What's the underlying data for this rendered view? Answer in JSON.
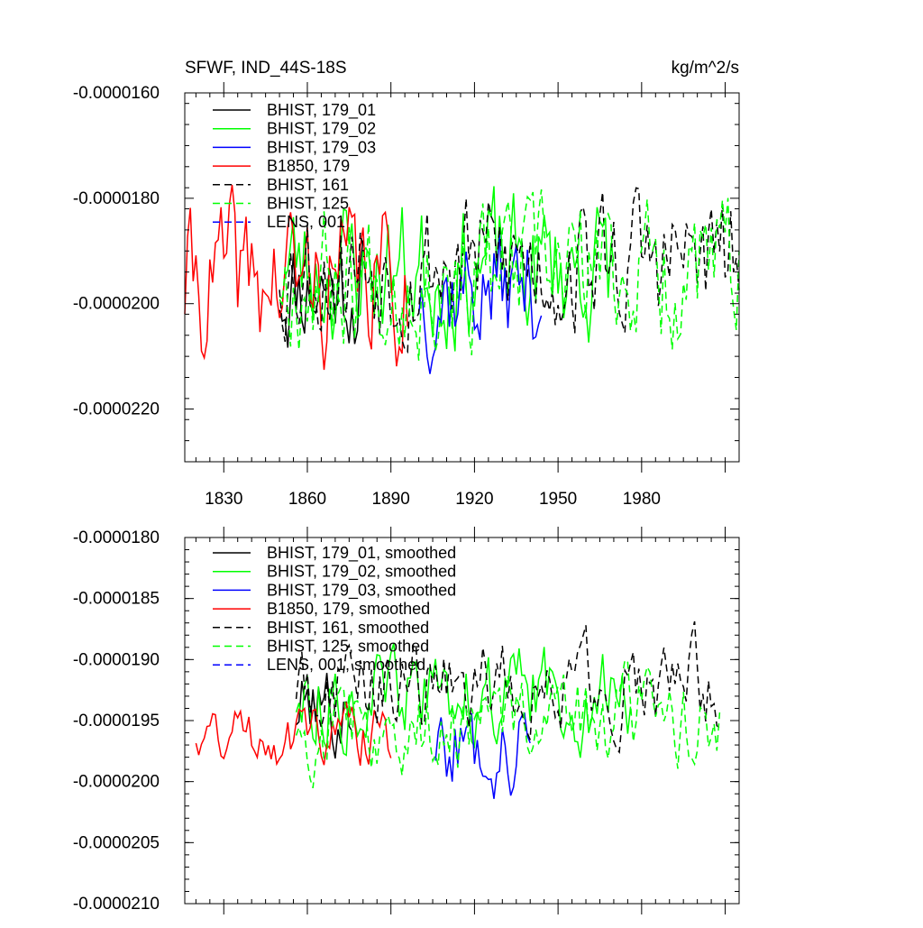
{
  "chart_data": [
    {
      "type": "line",
      "title": "SFWF, IND_44S-18S",
      "units": "kg/m^2/s",
      "xlabel": "",
      "ylabel": "",
      "xlim": [
        1816,
        2015
      ],
      "ylim": [
        -2.3e-05,
        -1.6e-05
      ],
      "x_ticks": [
        1830,
        1860,
        1890,
        1920,
        1950,
        1980
      ],
      "x_tick_labels": [
        "1830",
        "1860",
        "1890",
        "1920",
        "1950",
        "1980"
      ],
      "y_ticks": [
        -2.2e-05,
        -2e-05,
        -1.8e-05,
        -1.6e-05
      ],
      "y_tick_labels": [
        "-0.0000220",
        "-0.0000200",
        "-0.0000180",
        "-0.0000160"
      ],
      "legend_position": "top-left",
      "grid": false,
      "series": [
        {
          "name": "BHIST, 179_01",
          "color": "#000000",
          "dash": "solid",
          "start": 1850,
          "end": 1880,
          "step": 1,
          "mean": -1.96e-05,
          "amp": 1e-06,
          "seed": 11
        },
        {
          "name": "BHIST, 179_02",
          "color": "#00ff00",
          "dash": "solid",
          "start": 1850,
          "end": 1970,
          "step": 1,
          "mean": -1.93e-05,
          "amp": 1.1e-06,
          "seed": 23
        },
        {
          "name": "BHIST, 179_03",
          "color": "#0000ff",
          "dash": "solid",
          "start": 1900,
          "end": 1944,
          "step": 1,
          "mean": -1.97e-05,
          "amp": 1e-06,
          "seed": 37
        },
        {
          "name": "B1850, 179",
          "color": "#ff0000",
          "dash": "solid",
          "start": 1816,
          "end": 1896,
          "step": 1,
          "mean": -1.96e-05,
          "amp": 1.2e-06,
          "seed": 41
        },
        {
          "name": "BHIST, 161",
          "color": "#000000",
          "dash": "dashed",
          "start": 1850,
          "end": 2015,
          "step": 1,
          "mean": -1.92e-05,
          "amp": 1.1e-06,
          "seed": 53
        },
        {
          "name": "BHIST, 125",
          "color": "#00ff00",
          "dash": "dashed",
          "start": 1850,
          "end": 2015,
          "step": 1,
          "mean": -1.94e-05,
          "amp": 1.1e-06,
          "seed": 67
        },
        {
          "name": "LENS, 001",
          "color": "#0000ff",
          "dash": "dashed",
          "start": null,
          "end": null,
          "step": 1,
          "mean": -1.93e-05,
          "amp": 8e-07,
          "seed": 79
        }
      ]
    },
    {
      "type": "line",
      "title": "",
      "units": "",
      "xlabel": "",
      "ylabel": "",
      "xlim": [
        1816,
        2015
      ],
      "ylim": [
        -2.1e-05,
        -1.8e-05
      ],
      "x_ticks": [],
      "x_tick_labels": [],
      "y_ticks": [
        -2.1e-05,
        -2.05e-05,
        -2e-05,
        -1.95e-05,
        -1.9e-05,
        -1.85e-05,
        -1.8e-05
      ],
      "y_tick_labels": [
        "-0.0000210",
        "-0.0000205",
        "-0.0000200",
        "-0.0000195",
        "-0.0000190",
        "-0.0000185",
        "-0.0000180"
      ],
      "legend_position": "top-left",
      "grid": false,
      "series": [
        {
          "name": "BHIST, 179_01, smoothed",
          "color": "#000000",
          "dash": "solid",
          "start": 1856,
          "end": 1876,
          "step": 1,
          "mean": -1.94e-05,
          "amp": 3e-07,
          "seed": 101
        },
        {
          "name": "BHIST, 179_02, smoothed",
          "color": "#00ff00",
          "dash": "solid",
          "start": 1856,
          "end": 1976,
          "step": 1,
          "mean": -1.93e-05,
          "amp": 3e-07,
          "seed": 113
        },
        {
          "name": "BHIST, 179_03, smoothed",
          "color": "#0000ff",
          "dash": "solid",
          "start": 1906,
          "end": 1940,
          "step": 1,
          "mean": -1.97e-05,
          "amp": 3e-07,
          "seed": 127
        },
        {
          "name": "B1850, 179, smoothed",
          "color": "#ff0000",
          "dash": "solid",
          "start": 1820,
          "end": 1890,
          "step": 1,
          "mean": -1.96e-05,
          "amp": 2e-07,
          "seed": 131
        },
        {
          "name": "BHIST, 161, smoothed",
          "color": "#000000",
          "dash": "dashed",
          "start": 1856,
          "end": 2008,
          "step": 1,
          "mean": -1.92e-05,
          "amp": 3e-07,
          "seed": 149
        },
        {
          "name": "BHIST, 125, smoothed",
          "color": "#00ff00",
          "dash": "dashed",
          "start": 1856,
          "end": 2008,
          "step": 1,
          "mean": -1.95e-05,
          "amp": 3e-07,
          "seed": 157
        },
        {
          "name": "LENS, 001, smoothed",
          "color": "#0000ff",
          "dash": "dashed",
          "start": null,
          "end": null,
          "step": 1,
          "mean": -1.93e-05,
          "amp": 2e-07,
          "seed": 163
        }
      ]
    }
  ]
}
